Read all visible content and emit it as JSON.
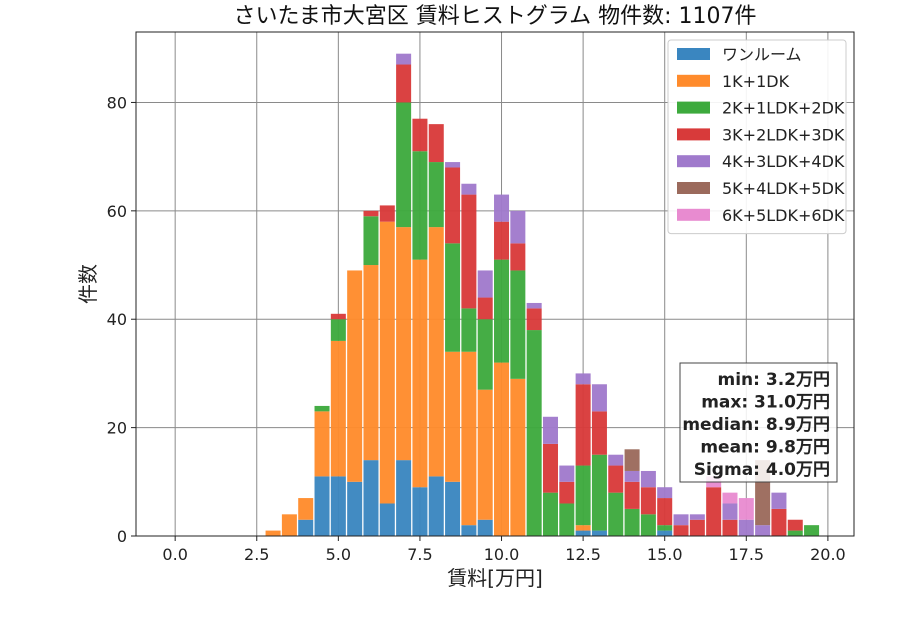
{
  "chart_data": {
    "type": "bar",
    "stacked": true,
    "title": "さいたま市大宮区 賃料ヒストグラム  物件数: 1107件",
    "xlabel": "賃料[万円]",
    "ylabel": "件数",
    "xlim": [
      -1.2,
      20.8
    ],
    "ylim": [
      0,
      93
    ],
    "xticks": [
      0,
      2.5,
      5,
      7.5,
      10,
      12.5,
      15,
      17.5,
      20
    ],
    "xtick_labels": [
      "0.0",
      "2.5",
      "5.0",
      "7.5",
      "10.0",
      "12.5",
      "15.0",
      "17.5",
      "20.0"
    ],
    "yticks": [
      0,
      20,
      40,
      60,
      80
    ],
    "ytick_labels": [
      "0",
      "20",
      "40",
      "60",
      "80"
    ],
    "grid": true,
    "legend_position": "top-right",
    "bin_width": 0.5,
    "x": [
      3.0,
      3.5,
      4.0,
      4.5,
      5.0,
      5.5,
      6.0,
      6.5,
      7.0,
      7.5,
      8.0,
      8.5,
      9.0,
      9.5,
      10.0,
      10.5,
      11.0,
      11.5,
      12.0,
      12.5,
      13.0,
      13.5,
      14.0,
      14.5,
      15.0,
      15.5,
      16.0,
      16.5,
      17.0,
      17.5,
      18.0,
      18.5,
      19.0,
      19.5
    ],
    "series": [
      {
        "name": "ワンルーム",
        "color": "#3a86c0",
        "values": [
          0,
          0,
          3,
          11,
          11,
          10,
          14,
          6,
          14,
          9,
          11,
          10,
          2,
          3,
          0,
          0,
          0,
          0,
          0,
          1,
          1,
          0,
          0,
          0,
          1,
          0,
          0,
          0,
          0,
          0,
          0,
          0,
          0,
          0
        ]
      },
      {
        "name": "1K+1DK",
        "color": "#ff8b2c",
        "values": [
          1,
          4,
          4,
          12,
          25,
          39,
          36,
          52,
          43,
          42,
          46,
          24,
          32,
          24,
          32,
          29,
          0,
          0,
          0,
          1,
          0,
          0,
          0,
          0,
          0,
          0,
          0,
          0,
          0,
          0,
          0,
          0,
          0,
          0
        ]
      },
      {
        "name": "2K+1LDK+2DK",
        "color": "#3daa3d",
        "values": [
          0,
          0,
          0,
          1,
          4,
          0,
          9,
          0,
          23,
          20,
          12,
          20,
          8,
          13,
          19,
          20,
          38,
          8,
          6,
          11,
          14,
          8,
          5,
          4,
          1,
          0,
          0,
          0,
          0,
          0,
          0,
          0,
          1,
          2
        ]
      },
      {
        "name": "3K+2LDK+3DK",
        "color": "#d83a3a",
        "values": [
          0,
          0,
          0,
          0,
          1,
          0,
          1,
          3,
          7,
          6,
          7,
          14,
          21,
          4,
          7,
          5,
          4,
          9,
          4,
          15,
          8,
          5,
          5,
          5,
          5,
          2,
          3,
          9,
          3,
          0,
          0,
          5,
          2,
          0
        ]
      },
      {
        "name": "4K+3LDK+4DK",
        "color": "#a07acc",
        "values": [
          0,
          0,
          0,
          0,
          0,
          0,
          0,
          0,
          2,
          0,
          0,
          1,
          2,
          5,
          5,
          6,
          1,
          5,
          3,
          2,
          5,
          2,
          2,
          3,
          2,
          2,
          1,
          0,
          3,
          3,
          2,
          3,
          0,
          0
        ]
      },
      {
        "name": "5K+4LDK+5DK",
        "color": "#9b6a5c",
        "values": [
          0,
          0,
          0,
          0,
          0,
          0,
          0,
          0,
          0,
          0,
          0,
          0,
          0,
          0,
          0,
          0,
          0,
          0,
          0,
          0,
          0,
          0,
          4,
          0,
          0,
          0,
          0,
          0,
          0,
          0,
          12,
          0,
          0,
          0
        ]
      },
      {
        "name": "6K+5LDK+6DK",
        "color": "#e88bd0",
        "values": [
          0,
          0,
          0,
          0,
          0,
          0,
          0,
          0,
          0,
          0,
          0,
          0,
          0,
          0,
          0,
          0,
          0,
          0,
          0,
          0,
          0,
          0,
          0,
          0,
          0,
          0,
          0,
          2,
          2,
          4,
          0,
          0,
          0,
          0
        ]
      }
    ],
    "stats": [
      "min: 3.2万円",
      "max: 31.0万円",
      "median: 8.9万円",
      "mean: 9.8万円",
      "Sigma: 4.0万円"
    ]
  }
}
